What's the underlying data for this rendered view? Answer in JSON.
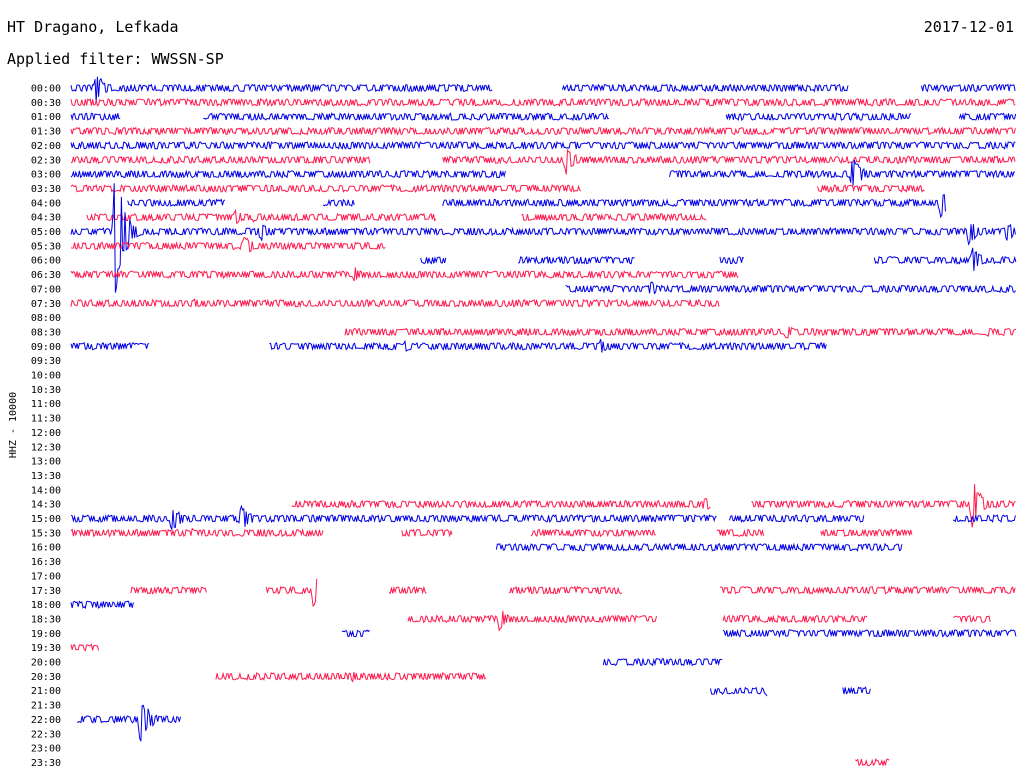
{
  "header": {
    "station": "HT Dragano, Lefkada",
    "filter": "Applied filter: WWSSN-SP",
    "date": "2017-12-01"
  },
  "chart_data": {
    "type": "helicorder",
    "ylabel": "HHZ - 10000",
    "row_labels": [
      "00:00",
      "00:30",
      "01:00",
      "01:30",
      "02:00",
      "02:30",
      "03:00",
      "03:30",
      "04:00",
      "04:30",
      "05:00",
      "05:30",
      "06:00",
      "06:30",
      "07:00",
      "07:30",
      "08:00",
      "08:30",
      "09:00",
      "09:30",
      "10:00",
      "10:30",
      "11:00",
      "11:30",
      "12:00",
      "12:30",
      "13:00",
      "13:30",
      "14:00",
      "14:30",
      "15:00",
      "15:30",
      "16:00",
      "16:30",
      "17:00",
      "17:30",
      "18:00",
      "18:30",
      "19:00",
      "19:30",
      "20:00",
      "20:30",
      "21:00",
      "21:30",
      "22:00",
      "22:30",
      "23:00",
      "23:30"
    ],
    "colors": {
      "even_rows": "#0000e6",
      "odd_rows": "#ff1a4d"
    },
    "minutes_per_row": 30,
    "segments": [
      [
        [
          0,
          13.4
        ],
        [
          15.6,
          24.7
        ],
        [
          27,
          30
        ]
      ],
      [
        [
          0,
          30
        ]
      ],
      [
        [
          0,
          1.6
        ],
        [
          4.2,
          17.1
        ],
        [
          20.8,
          26.7
        ],
        [
          28.2,
          30
        ]
      ],
      [
        [
          0,
          30
        ]
      ],
      [
        [
          0,
          30
        ]
      ],
      [
        [
          0,
          9.5
        ],
        [
          11.8,
          30
        ]
      ],
      [
        [
          0,
          13.8
        ],
        [
          19,
          30
        ]
      ],
      [
        [
          0,
          16.2
        ],
        [
          23.7,
          27.1
        ]
      ],
      [
        [
          1.8,
          4.9
        ],
        [
          8,
          9
        ],
        [
          11.8,
          27.8
        ]
      ],
      [
        [
          0.5,
          11.6
        ],
        [
          14.3,
          20.2
        ]
      ],
      [
        [
          0,
          30
        ]
      ],
      [
        [
          0,
          10
        ]
      ],
      [
        [
          11.1,
          11.9
        ],
        [
          14.2,
          17.9
        ],
        [
          20.6,
          21.4
        ],
        [
          25.5,
          30
        ]
      ],
      [
        [
          0,
          21.2
        ]
      ],
      [
        [
          15.7,
          30
        ]
      ],
      [
        [
          0,
          20.6
        ]
      ],
      [],
      [
        [
          8.7,
          30
        ]
      ],
      [
        [
          0,
          2.5
        ],
        [
          6.3,
          24
        ]
      ],
      [],
      [],
      [],
      [],
      [],
      [],
      [],
      [],
      [],
      [],
      [
        [
          7,
          20.3
        ],
        [
          21.6,
          30
        ]
      ],
      [
        [
          0,
          20.5
        ],
        [
          20.9,
          25.2
        ],
        [
          28,
          30
        ]
      ],
      [
        [
          0,
          8
        ],
        [
          10.5,
          12.1
        ],
        [
          14.6,
          18.6
        ],
        [
          20.5,
          22
        ],
        [
          23.8,
          26.7
        ]
      ],
      [
        [
          13.5,
          26.4
        ]
      ],
      [],
      [],
      [
        [
          1.9,
          4.3
        ],
        [
          6.2,
          7.8
        ],
        [
          10.1,
          11.3
        ],
        [
          13.9,
          17.5
        ],
        [
          20.6,
          30
        ]
      ],
      [
        [
          0,
          2
        ]
      ],
      [
        [
          10.7,
          18.6
        ],
        [
          20.7,
          25.3
        ],
        [
          28,
          29.2
        ]
      ],
      [
        [
          8.6,
          9.5
        ],
        [
          20.7,
          30
        ]
      ],
      [
        [
          0,
          0.9
        ]
      ],
      [
        [
          16.9,
          20.7
        ]
      ],
      [
        [
          4.6,
          13.2
        ]
      ],
      [
        [
          20.3,
          22.1
        ],
        [
          24.5,
          25.4
        ]
      ],
      [],
      [
        [
          0.2,
          3.5
        ]
      ],
      [],
      [],
      [
        [
          24.9,
          26
        ]
      ]
    ],
    "events": [
      [
        [
          0.8,
          16
        ]
      ],
      [],
      [],
      [],
      [
        [
          16,
          5
        ]
      ],
      [
        [
          15.7,
          16
        ]
      ],
      [
        [
          24.8,
          20
        ]
      ],
      [],
      [
        [
          27.6,
          16
        ]
      ],
      [
        [
          5.2,
          8
        ],
        [
          5.8,
          5
        ]
      ],
      [
        [
          1.4,
          70
        ],
        [
          6,
          12
        ],
        [
          28.5,
          14
        ],
        [
          29.7,
          12
        ]
      ],
      [
        [
          5.5,
          12
        ],
        [
          12.1,
          22
        ]
      ],
      [
        [
          28.6,
          14
        ]
      ],
      [
        [
          9,
          8
        ]
      ],
      [
        [
          18.4,
          8
        ]
      ],
      [
        [
          3.9,
          5
        ]
      ],
      [],
      [
        [
          22.7,
          8
        ],
        [
          29.1,
          5
        ]
      ],
      [
        [
          10.6,
          6
        ],
        [
          16.8,
          8
        ]
      ],
      [],
      [],
      [],
      [],
      [],
      [],
      [],
      [],
      [],
      [],
      [
        [
          20.1,
          8
        ],
        [
          28.6,
          28
        ]
      ],
      [
        [
          3.2,
          14
        ],
        [
          5.4,
          16
        ]
      ],
      [
        [
          3.8,
          5
        ]
      ],
      [],
      [],
      [],
      [
        [
          7.7,
          22
        ]
      ],
      [],
      [
        [
          13.6,
          12
        ]
      ],
      [],
      [],
      [],
      [
        [
          8.9,
          6
        ]
      ],
      [
        [
          22.1,
          8
        ]
      ],
      [],
      [
        [
          2.2,
          26
        ]
      ],
      [],
      [],
      []
    ]
  }
}
